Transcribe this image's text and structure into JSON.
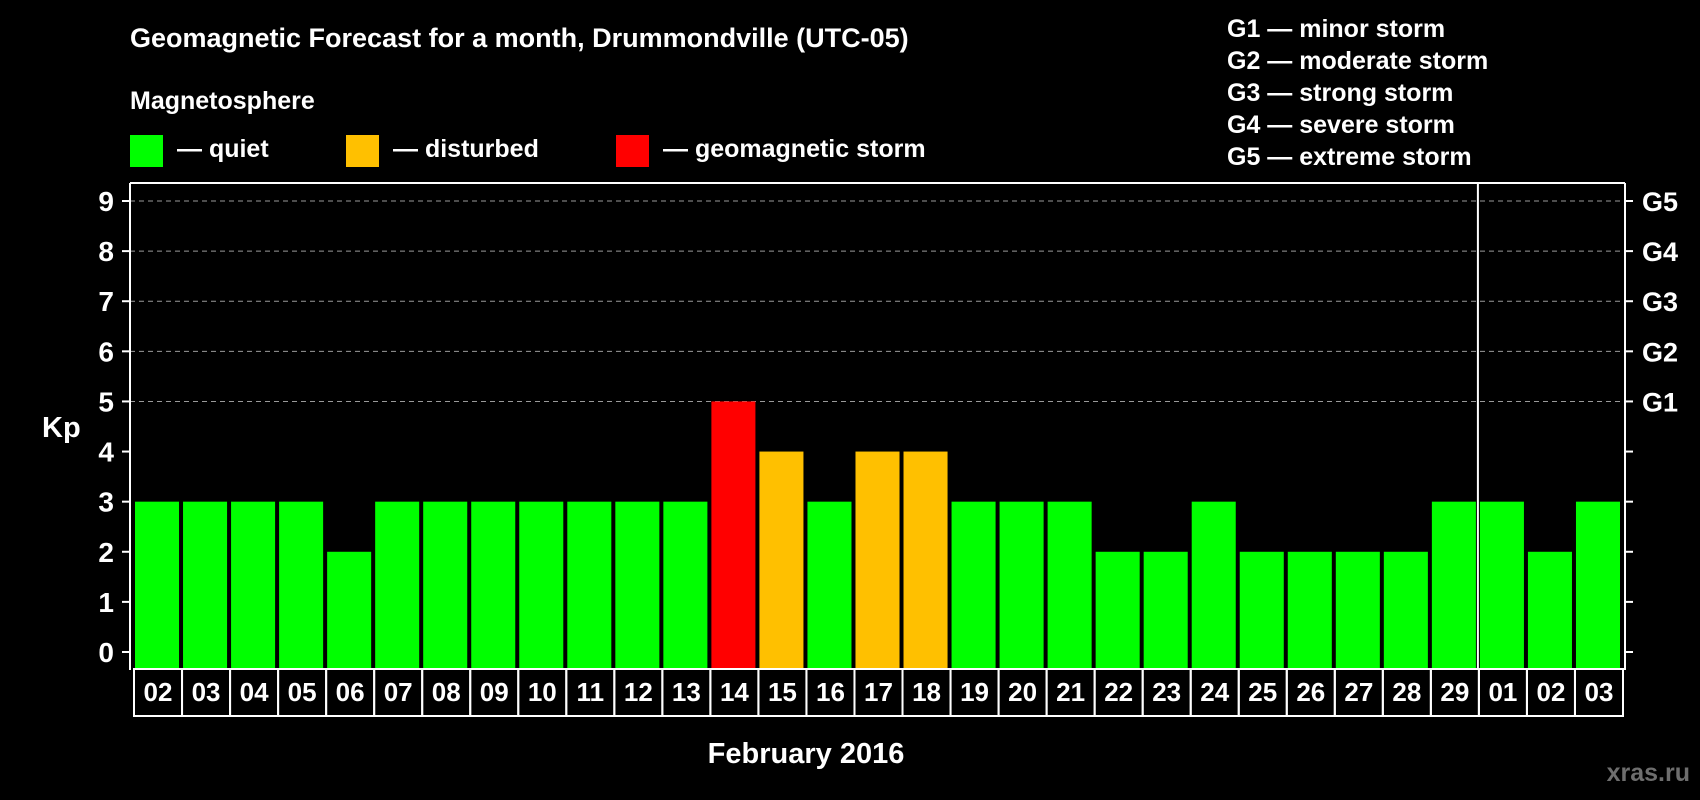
{
  "chart_data": {
    "type": "bar",
    "title": "Geomagnetic Forecast for a month, Drummondville (UTC-05)",
    "ylabel": "Kp",
    "xlabel": "February 2016",
    "ylim": [
      0,
      9
    ],
    "yticks": [
      "0",
      "1",
      "2",
      "3",
      "4",
      "5",
      "6",
      "7",
      "8",
      "9"
    ],
    "gridlines": [
      5,
      6,
      7,
      8,
      9
    ],
    "categories": [
      "02",
      "03",
      "04",
      "05",
      "06",
      "07",
      "08",
      "09",
      "10",
      "11",
      "12",
      "13",
      "14",
      "15",
      "16",
      "17",
      "18",
      "19",
      "20",
      "21",
      "22",
      "23",
      "24",
      "25",
      "26",
      "27",
      "28",
      "29",
      "01",
      "02",
      "03"
    ],
    "values": [
      3,
      3,
      3,
      3,
      2,
      3,
      3,
      3,
      3,
      3,
      3,
      3,
      5,
      4,
      3,
      4,
      4,
      3,
      3,
      3,
      2,
      2,
      3,
      2,
      2,
      2,
      2,
      3,
      3,
      2,
      3
    ],
    "month_separator_after_index": 27,
    "right_axis": [
      {
        "kp": 5,
        "label": "G1"
      },
      {
        "kp": 6,
        "label": "G2"
      },
      {
        "kp": 7,
        "label": "G3"
      },
      {
        "kp": 8,
        "label": "G4"
      },
      {
        "kp": 9,
        "label": "G5"
      }
    ],
    "legend_title": "Magnetosphere",
    "legend": [
      {
        "label": "— quiet",
        "color": "#00ff00",
        "min_kp": 0
      },
      {
        "label": "— disturbed",
        "color": "#ffc000",
        "min_kp": 4
      },
      {
        "label": "— geomagnetic storm",
        "color": "#ff0000",
        "min_kp": 5
      }
    ],
    "storm_scale": [
      "G1 — minor storm",
      "G2 — moderate storm",
      "G3 — strong storm",
      "G4 — severe storm",
      "G5 — extreme storm"
    ],
    "watermark": "xras.ru"
  }
}
